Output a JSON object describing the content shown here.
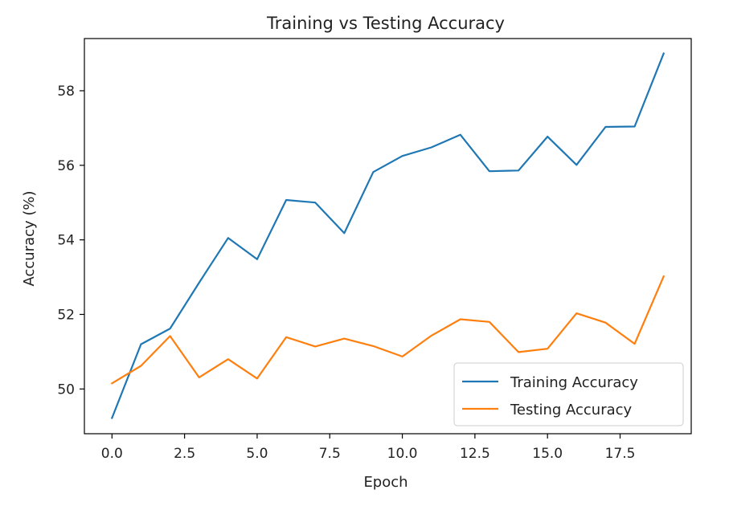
{
  "chart_data": {
    "type": "line",
    "title": "Training vs Testing Accuracy",
    "xlabel": "Epoch",
    "ylabel": "Accuracy (%)",
    "xlim": [
      -0.95,
      19.95
    ],
    "ylim": [
      48.8,
      59.4
    ],
    "xticks": [
      0.0,
      2.5,
      5.0,
      7.5,
      10.0,
      12.5,
      15.0,
      17.5
    ],
    "xtick_labels": [
      "0.0",
      "2.5",
      "5.0",
      "7.5",
      "10.0",
      "12.5",
      "15.0",
      "17.5"
    ],
    "yticks": [
      50,
      52,
      54,
      56,
      58
    ],
    "ytick_labels": [
      "50",
      "52",
      "54",
      "56",
      "58"
    ],
    "grid": false,
    "legend_position": "lower-right",
    "x": [
      0,
      1,
      2,
      3,
      4,
      5,
      6,
      7,
      8,
      9,
      10,
      11,
      12,
      13,
      14,
      15,
      16,
      17,
      18,
      19
    ],
    "series": [
      {
        "name": "Training Accuracy",
        "color": "#1f77b4",
        "values": [
          49.22,
          51.2,
          51.62,
          52.85,
          54.05,
          53.48,
          55.07,
          55.0,
          54.18,
          55.82,
          56.25,
          56.48,
          56.82,
          55.84,
          55.86,
          56.77,
          56.01,
          57.03,
          57.04,
          59.0
        ]
      },
      {
        "name": "Testing Accuracy",
        "color": "#ff7f0e",
        "values": [
          50.15,
          50.62,
          51.42,
          50.31,
          50.8,
          50.28,
          51.39,
          51.14,
          51.35,
          51.15,
          50.87,
          51.43,
          51.87,
          51.8,
          50.99,
          51.08,
          52.03,
          51.78,
          51.21,
          53.02
        ]
      }
    ]
  }
}
